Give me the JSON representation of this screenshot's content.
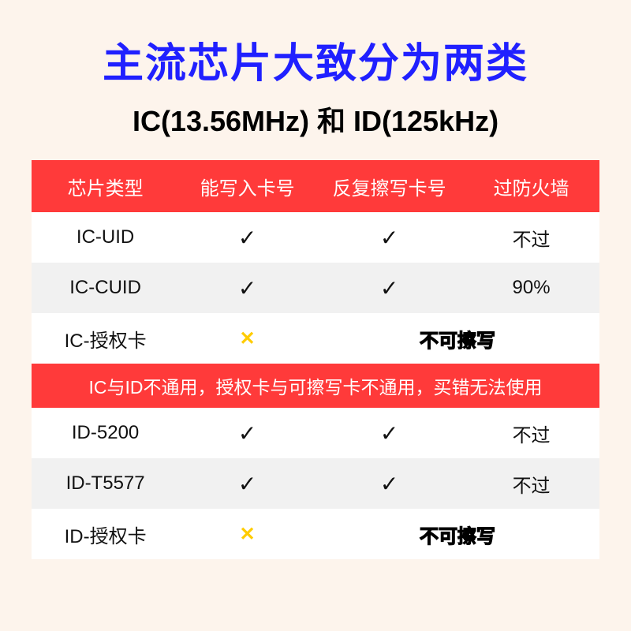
{
  "title": "主流芯片大致分为两类",
  "subtitle": "IC(13.56MHz) 和 ID(125kHz)",
  "headers": {
    "col1": "芯片类型",
    "col2": "能写入卡号",
    "col3": "反复擦写卡号",
    "col4": "过防火墙"
  },
  "check_mark": "✓",
  "cross_mark": "✕",
  "warn_text": "不可擦写",
  "divider_text": "IC与ID不通用，授权卡与可擦写卡不通用，买错无法使用",
  "ic_rows": [
    {
      "name": "IC-UID",
      "writable": true,
      "rewritable": true,
      "firewall": "不过",
      "bg": "white"
    },
    {
      "name": "IC-CUID",
      "writable": true,
      "rewritable": true,
      "firewall": "90%",
      "bg": "gray"
    },
    {
      "name": "IC-授权卡",
      "writable": false,
      "rewritable": false,
      "firewall": "",
      "bg": "white"
    }
  ],
  "id_rows": [
    {
      "name": "ID-5200",
      "writable": true,
      "rewritable": true,
      "firewall": "不过",
      "bg": "white"
    },
    {
      "name": "ID-T5577",
      "writable": true,
      "rewritable": true,
      "firewall": "不过",
      "bg": "gray"
    },
    {
      "name": "ID-授权卡",
      "writable": false,
      "rewritable": false,
      "firewall": "",
      "bg": "white"
    }
  ],
  "colors": {
    "page_bg": "#fdf4ec",
    "title_color": "#2020ff",
    "header_bg": "#ff3a3a",
    "header_text": "#ffffff",
    "row_white": "#ffffff",
    "row_gray": "#f1f1f1",
    "text_color": "#111111",
    "warn_color": "#ffcc00",
    "warn_stroke": "#000000"
  },
  "fonts": {
    "title_size": 52,
    "subtitle_size": 36,
    "header_size": 24,
    "cell_size": 24,
    "check_size": 28
  }
}
